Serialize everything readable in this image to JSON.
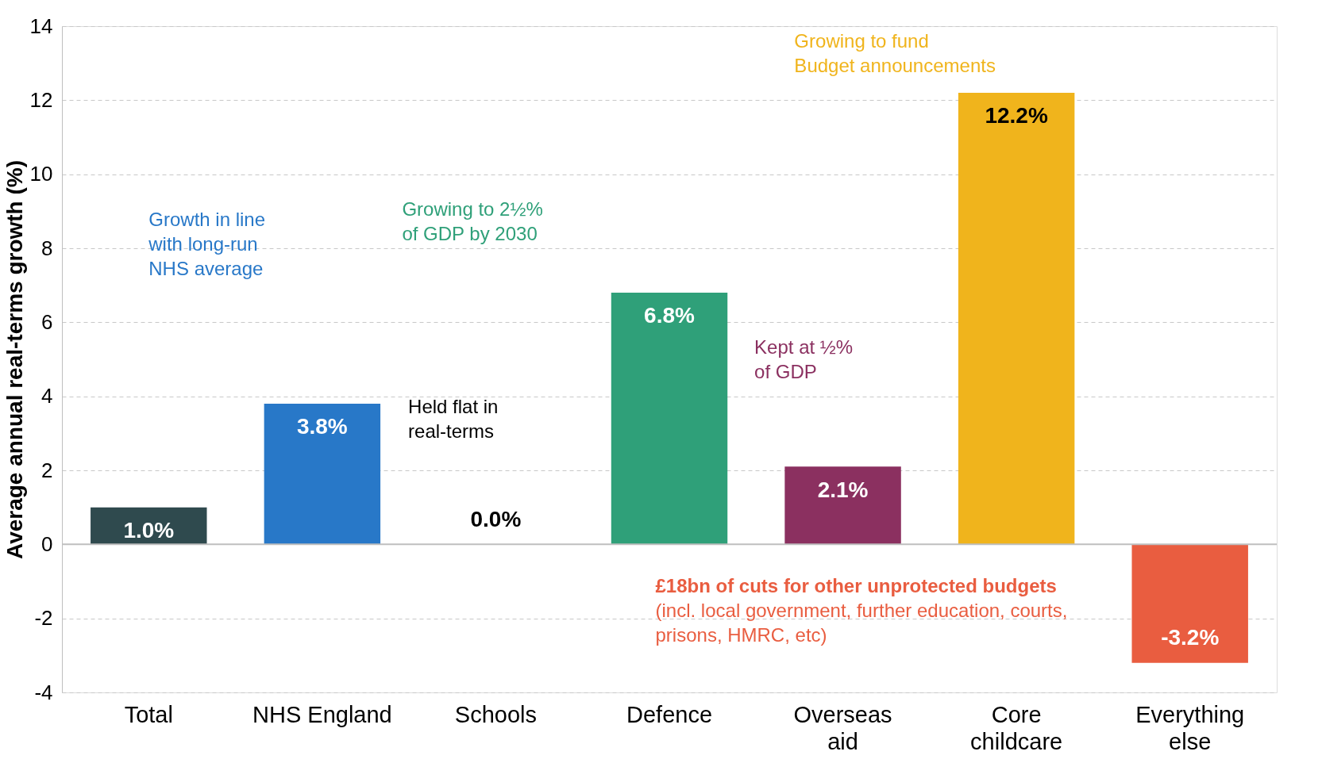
{
  "chart_data": {
    "type": "bar",
    "ylabel": "Average annual real-terms growth (%)",
    "categories": [
      "Total",
      "NHS England",
      "Schools",
      "Defence",
      "Overseas\naid",
      "Core\nchildcare",
      "Everything\nelse"
    ],
    "values": [
      1.0,
      3.8,
      0.0,
      6.8,
      2.1,
      12.2,
      -3.2
    ],
    "colors": [
      "#2f4a4e",
      "#2878c8",
      "#9a9a9a",
      "#2fa079",
      "#8b3060",
      "#f0b41c",
      "#e95d40"
    ],
    "value_labels": [
      "1.0%",
      "3.8%",
      "0.0%",
      "6.8%",
      "2.1%",
      "12.2%",
      "-3.2%"
    ],
    "ylim": [
      -4,
      14
    ],
    "yticks": [
      -4,
      -2,
      0,
      2,
      4,
      6,
      8,
      10,
      12,
      14
    ],
    "grid": "y",
    "ref_lines": [
      {
        "axis": "y",
        "value": 0,
        "color": "#bfbfbf"
      }
    ],
    "annotations": [
      "Growth in line\nwith long-run\nNHS average",
      "Held flat in\nreal-terms",
      "Growing to 2½%\nof GDP by 2030",
      "Kept at ½%\nof GDP",
      "Growing to fund\nBudget announcements",
      "£18bn of cuts for other unprotected budgets\n(incl. local government, further education, courts,\nprisons, HMRC, etc)"
    ]
  }
}
